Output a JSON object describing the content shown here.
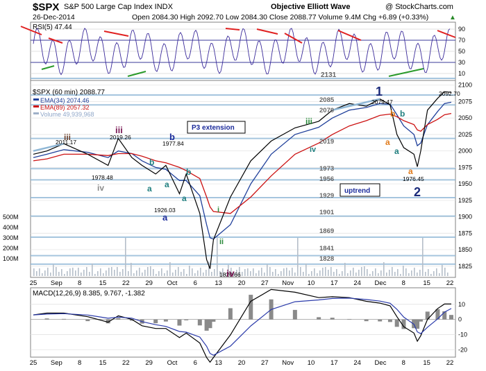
{
  "header": {
    "title": "$SPX",
    "subtitle": "S&P 500 Large Cap Index  INDX",
    "source": "Objective Elliott Wave",
    "watermark": "@ StockCharts.com",
    "date": "26-Dec-2014",
    "quote": "Open 2084.30  High 2092.70  Low 2084.30  Close 2088.77  Volume 9.4M  Chg +6.89 (+0.33%)",
    "quote_arrow": "▲"
  },
  "rsi_panel": {
    "label": "RSI(5) 47.44",
    "ticks": [
      90,
      70,
      50,
      30,
      10
    ],
    "annotation": "2131"
  },
  "price_panel": {
    "symbol_label": "$SPX (60 min) 2088.77",
    "legend": [
      {
        "text": "EMA(34) 2074.46",
        "color": "#1f3f9a"
      },
      {
        "text": "EMA(89) 2057.32",
        "color": "#cc1111"
      },
      {
        "text": "Volume 49,939,968",
        "color": "#9fb0c8"
      }
    ],
    "y_ticks": [
      2100,
      2075,
      2050,
      2025,
      2000,
      1975,
      1950,
      1925,
      1900,
      1875,
      1850,
      1825
    ],
    "volume_ticks": [
      "500M",
      "400M",
      "300M",
      "200M",
      "100M"
    ],
    "level_labels": [
      "2085",
      "2070",
      "2019",
      "1973",
      "1956",
      "1929",
      "1901",
      "1869",
      "1841",
      "1828"
    ],
    "box_labels": {
      "p3": "P3 extension",
      "uptrend": "uptrend"
    },
    "price_labels": [
      "2011.17",
      "1978.48",
      "2019.26",
      "1977.84",
      "1926.03",
      "1820.66",
      "2079.47",
      "1976.45",
      "2092.70"
    ],
    "wave_labels": [
      "iii",
      "iv",
      "iii",
      "b",
      "b",
      "b",
      "a",
      "a",
      "a",
      "a",
      "i",
      "ii",
      "iv",
      "iii",
      "iv",
      "1",
      "b",
      "b",
      "a",
      "a",
      "a",
      "2"
    ]
  },
  "macd_panel": {
    "label": "MACD(12,26,9) 8.385, 9.767, -1.382",
    "ticks": [
      10,
      0,
      -10,
      -20
    ]
  },
  "x_axis": {
    "labels": [
      "25",
      "Sep",
      "8",
      "15",
      "22",
      "29",
      "Oct",
      "6",
      "13",
      "20",
      "27",
      "Nov",
      "10",
      "17",
      "24",
      "Dec",
      "8",
      "15",
      "22"
    ]
  },
  "chart_data": {
    "type": "line",
    "ylim": [
      1810,
      2105
    ],
    "x": [
      "2014-08-25",
      "2014-08-29",
      "2014-09-03",
      "2014-09-10",
      "2014-09-16",
      "2014-09-19",
      "2014-09-23",
      "2014-09-26",
      "2014-09-30",
      "2014-10-03",
      "2014-10-07",
      "2014-10-09",
      "2014-10-13",
      "2014-10-15",
      "2014-10-16",
      "2014-10-17",
      "2014-10-22",
      "2014-10-28",
      "2014-11-03",
      "2014-11-10",
      "2014-11-17",
      "2014-11-21",
      "2014-11-26",
      "2014-12-01",
      "2014-12-05",
      "2014-12-08",
      "2014-12-10",
      "2014-12-12",
      "2014-12-15",
      "2014-12-16",
      "2014-12-17",
      "2014-12-19",
      "2014-12-22",
      "2014-12-24",
      "2014-12-26"
    ],
    "series": [
      {
        "name": "$SPX (60 min)",
        "values": [
          1995,
          2000,
          2011,
          1995,
          1978,
          2019,
          1990,
          1978,
          1965,
          1978,
          1935,
          1965,
          1905,
          1835,
          1821,
          1865,
          1930,
          1985,
          2015,
          2035,
          2045,
          2062,
          2072,
          2068,
          2079,
          2070,
          2025,
          2005,
          1995,
          1976,
          2000,
          2062,
          2080,
          2090,
          2089
        ]
      },
      {
        "name": "EMA(34) 2074.46",
        "values": [
          1990,
          1995,
          2002,
          1998,
          1990,
          2000,
          1996,
          1985,
          1975,
          1972,
          1955,
          1955,
          1932,
          1888,
          1868,
          1866,
          1888,
          1950,
          1995,
          2025,
          2036,
          2050,
          2062,
          2066,
          2072,
          2071,
          2055,
          2038,
          2025,
          2008,
          2012,
          2040,
          2060,
          2072,
          2074
        ]
      },
      {
        "name": "EMA(89) 2057.32",
        "values": [
          1985,
          1988,
          1995,
          1995,
          1993,
          1996,
          1996,
          1992,
          1985,
          1982,
          1975,
          1970,
          1958,
          1930,
          1915,
          1908,
          1905,
          1930,
          1962,
          1995,
          2012,
          2025,
          2038,
          2046,
          2054,
          2056,
          2052,
          2046,
          2040,
          2032,
          2030,
          2040,
          2048,
          2055,
          2057
        ]
      }
    ],
    "rsi_ylim": [
      0,
      100
    ],
    "macd_ylim": [
      -24,
      20
    ]
  }
}
